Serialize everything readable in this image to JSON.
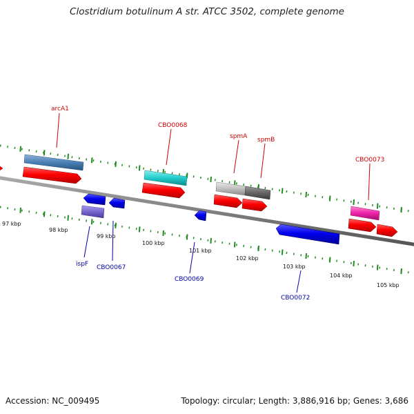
{
  "title": "Clostridium botulinum A str. ATCC 3502, complete genome",
  "accession": "Accession: NC_009495",
  "topology": "Topology: circular; Length: 3,886,916 bp; Genes: 3,686",
  "scale_labels": [
    "97 kbp",
    "98 kbp",
    "99 kbp",
    "100 kbp",
    "101 kbp",
    "102 kbp",
    "103 kbp",
    "104 kbp",
    "105 kbp"
  ],
  "labels": {
    "arcA1": "arcA1",
    "CBO0068": "CBO0068",
    "spmA": "spmA",
    "spmB": "spmB",
    "CBO0073": "CBO0073",
    "ispF": "ispF",
    "CBO0067": "CBO0067",
    "CBO0069": "CBO0069",
    "CBO0072": "CBO0072"
  },
  "colors": {
    "forward_label": "#cc0000",
    "reverse_label": "#0000aa",
    "cds_forward": "#ff0000",
    "cds_reverse": "#0000ee",
    "tick": "#228b22",
    "backbone": "#808080",
    "arcA1_gene": "#4a7fb5",
    "CBO0068_gene": "#22cccc",
    "spmA_gene": "#c0c0c0",
    "spmB_gene": "#666666",
    "CBO0073_gene": "#ee22aa",
    "ispF_gene": "#7766cc"
  }
}
